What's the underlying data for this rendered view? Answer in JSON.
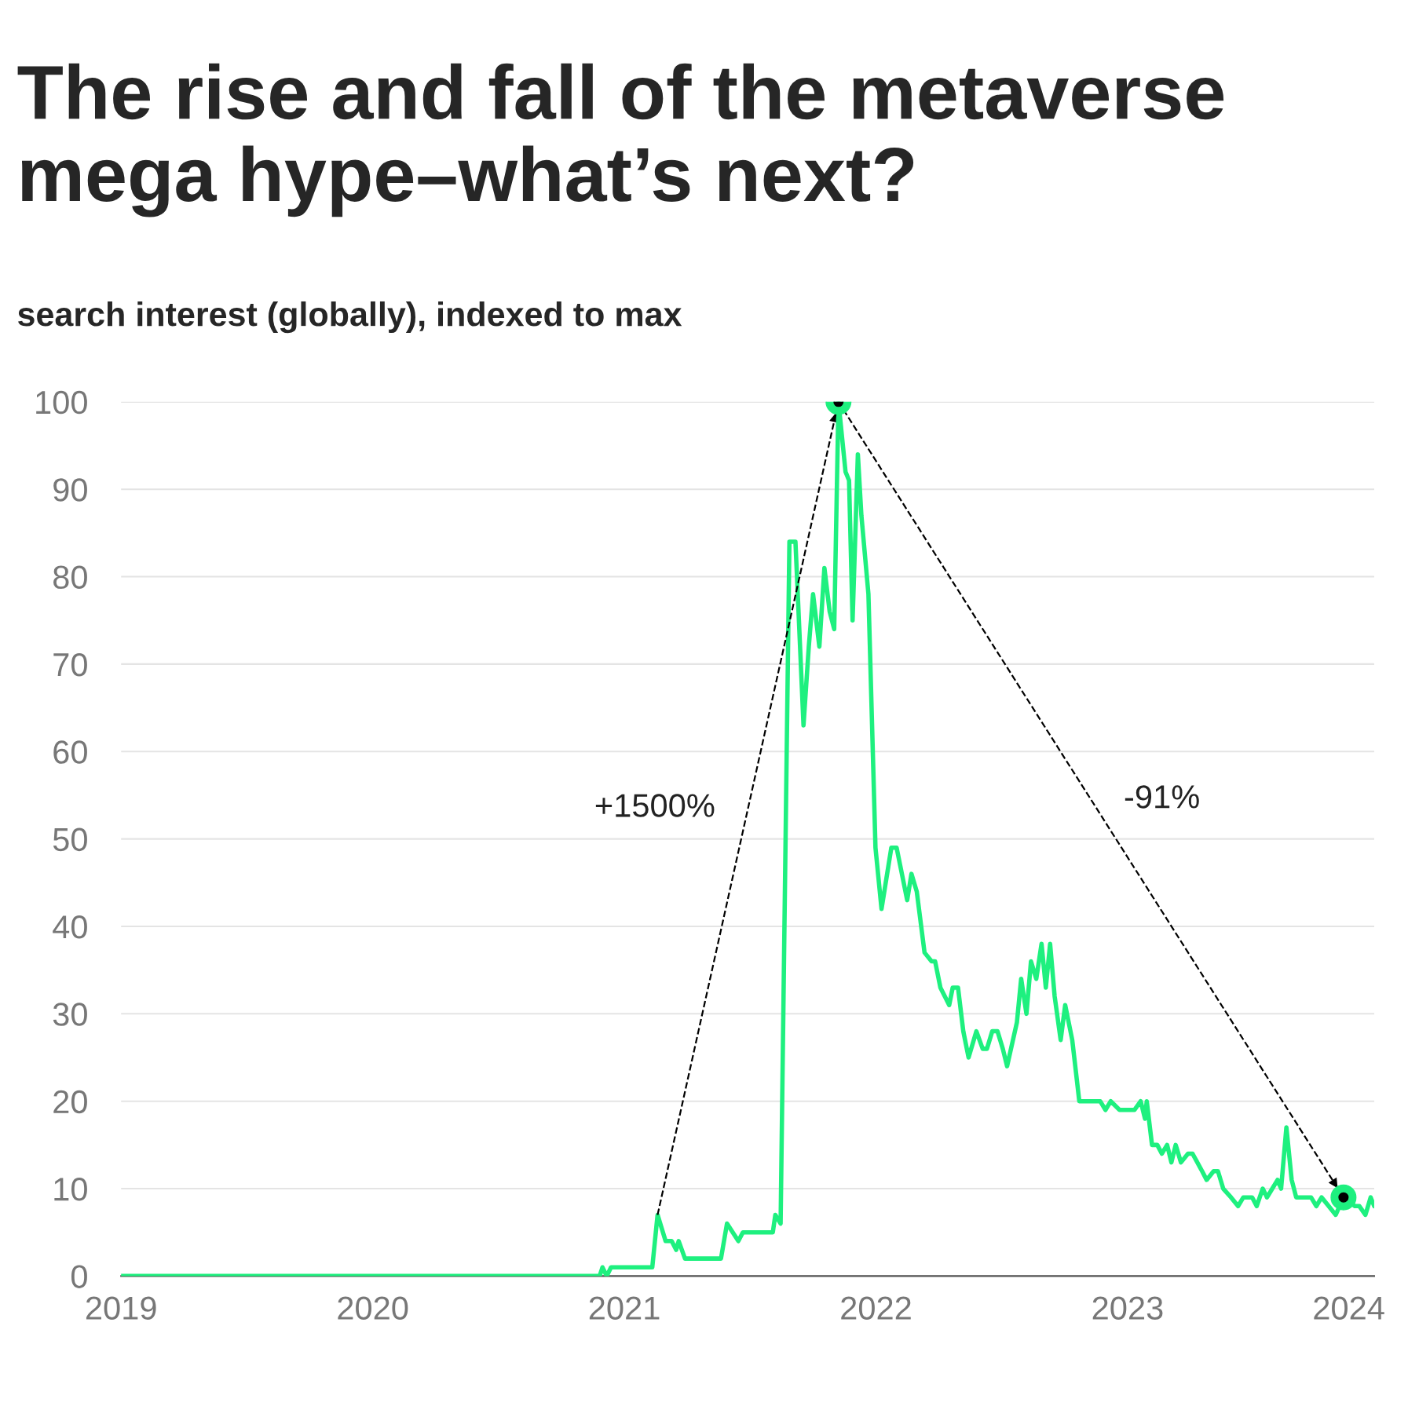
{
  "chart_data": {
    "type": "line",
    "title": "The rise and fall of the metaverse mega hype–what’s next?",
    "subtitle": "search interest (globally), indexed to max",
    "xlim": [
      2019,
      2023.98
    ],
    "ylim": [
      0,
      100
    ],
    "xticks": [
      {
        "value": 2019,
        "label": "2019"
      },
      {
        "value": 2020,
        "label": "2020"
      },
      {
        "value": 2021,
        "label": "2021"
      },
      {
        "value": 2022,
        "label": "2022"
      },
      {
        "value": 2023,
        "label": "2023"
      },
      {
        "value": 2023.879,
        "label": "2024"
      }
    ],
    "yticks": [
      0,
      10,
      20,
      30,
      40,
      50,
      60,
      70,
      80,
      90,
      100
    ],
    "grid": "y",
    "legend": false,
    "line_style": "solid",
    "series": [
      {
        "type": "line",
        "color": "#1ef07f",
        "marker": "none",
        "x": [
          2019.0,
          2020.902,
          2020.913,
          2020.93,
          2020.947,
          2021.111,
          2021.132,
          2021.164,
          2021.188,
          2021.206,
          2021.216,
          2021.241,
          2021.384,
          2021.408,
          2021.453,
          2021.471,
          2021.59,
          2021.6,
          2021.621,
          2021.656,
          2021.68,
          2021.712,
          2021.733,
          2021.75,
          2021.775,
          2021.795,
          2021.816,
          2021.834,
          2021.851,
          2021.879,
          2021.893,
          2021.907,
          2021.928,
          2021.942,
          2021.97,
          2021.998,
          2022.022,
          2022.061,
          2022.082,
          2022.124,
          2022.141,
          2022.162,
          2022.193,
          2022.221,
          2022.235,
          2022.256,
          2022.291,
          2022.305,
          2022.326,
          2022.347,
          2022.368,
          2022.399,
          2022.424,
          2022.441,
          2022.462,
          2022.483,
          2022.504,
          2022.521,
          2022.56,
          2022.577,
          2022.598,
          2022.616,
          2022.637,
          2022.658,
          2022.675,
          2022.692,
          2022.71,
          2022.734,
          2022.752,
          2022.78,
          2022.808,
          2022.891,
          2022.912,
          2022.933,
          2022.968,
          2023.027,
          2023.052,
          2023.069,
          2023.076,
          2023.097,
          2023.118,
          2023.136,
          2023.157,
          2023.174,
          2023.191,
          2023.212,
          2023.24,
          2023.258,
          2023.296,
          2023.314,
          2023.342,
          2023.359,
          2023.38,
          2023.411,
          2023.439,
          2023.46,
          2023.495,
          2023.513,
          2023.537,
          2023.554,
          2023.575,
          2023.596,
          2023.61,
          2023.631,
          2023.652,
          2023.67,
          2023.729,
          2023.75,
          2023.771,
          2023.799,
          2023.827,
          2023.858,
          2023.903,
          2023.921,
          2023.945,
          2023.966,
          2023.98
        ],
        "values": [
          0,
          0,
          1,
          0,
          1,
          1,
          7,
          4,
          4,
          3,
          4,
          2,
          2,
          6,
          4,
          5,
          5,
          7,
          6,
          84,
          84,
          63,
          72,
          78,
          72,
          81,
          76,
          74,
          100,
          92,
          91,
          75,
          94,
          87,
          78,
          49,
          42,
          49,
          49,
          43,
          46,
          44,
          37,
          36,
          36,
          33,
          31,
          33,
          33,
          28,
          25,
          28,
          26,
          26,
          28,
          28,
          26,
          24,
          29,
          34,
          30,
          36,
          34,
          38,
          33,
          38,
          32,
          27,
          31,
          27,
          20,
          20,
          19,
          20,
          19,
          19,
          20,
          18,
          20,
          15,
          15,
          14,
          15,
          13,
          15,
          13,
          14,
          14,
          12,
          11,
          12,
          12,
          10,
          9,
          8,
          9,
          9,
          8,
          10,
          9,
          10,
          11,
          10,
          17,
          11,
          9,
          9,
          8,
          9,
          8,
          7,
          9,
          8,
          8,
          7,
          9,
          8
        ]
      },
      {
        "type": "line",
        "color": "#000000",
        "line_style": "dashed",
        "x": [
          2021.132,
          2021.851
        ],
        "values": [
          7,
          100
        ]
      },
      {
        "type": "line",
        "color": "#000000",
        "line_style": "dashed",
        "x": [
          2021.851,
          2023.858
        ],
        "values": [
          100,
          9
        ]
      },
      {
        "type": "scatter",
        "color": "#1ef07f",
        "marker": "circle",
        "x": [
          2021.851,
          2023.858
        ],
        "values": [
          100,
          9
        ]
      }
    ],
    "annotations": [
      "+1500%",
      "-91%"
    ]
  }
}
